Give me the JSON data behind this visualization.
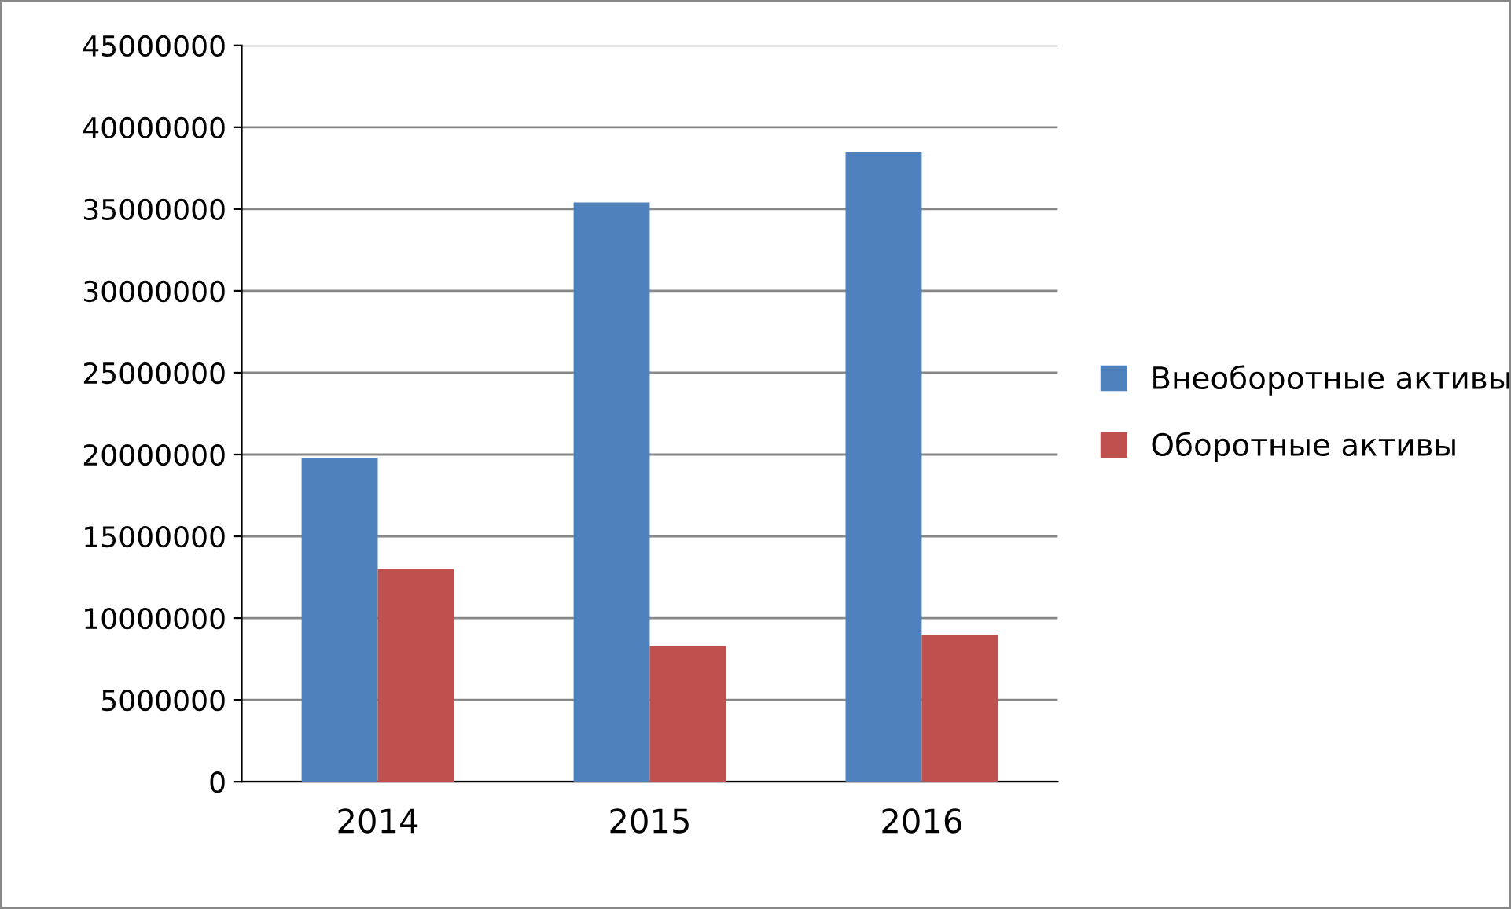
{
  "chart_data": {
    "type": "bar",
    "categories": [
      "2014",
      "2015",
      "2016"
    ],
    "series": [
      {
        "name": "Внеоборотные активы",
        "color": "#4f81bd",
        "values": [
          19800000,
          35400000,
          38500000
        ]
      },
      {
        "name": "Оборотные активы",
        "color": "#c0504d",
        "values": [
          13000000,
          8300000,
          9000000
        ]
      }
    ],
    "ylim": [
      0,
      45000000
    ],
    "yticks": [
      0,
      5000000,
      10000000,
      15000000,
      20000000,
      25000000,
      30000000,
      35000000,
      40000000,
      45000000
    ],
    "grid": "y",
    "legend": "right"
  }
}
